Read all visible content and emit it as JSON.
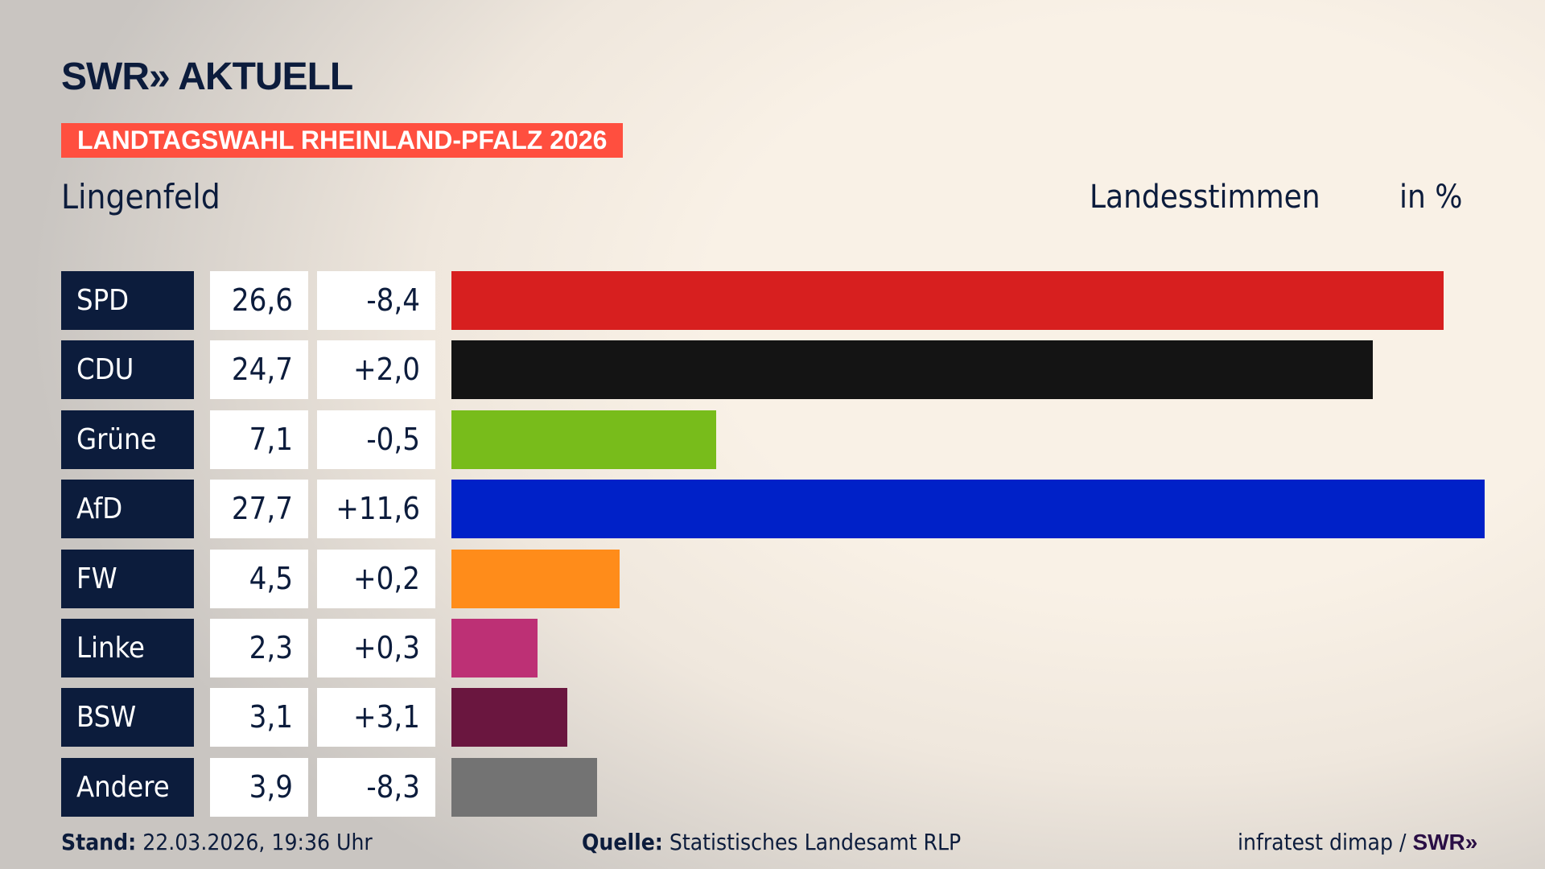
{
  "header": {
    "logo": "SWR» AKTUELL",
    "banner": "LANDTAGSWAHL RHEINLAND-PFALZ 2026",
    "place": "Lingenfeld",
    "vote_type": "Landesstimmen",
    "unit": "in %"
  },
  "chart_data": {
    "type": "bar",
    "orientation": "horizontal",
    "xlim": [
      0,
      27.7
    ],
    "grid": false,
    "categories": [
      "SPD",
      "CDU",
      "Grüne",
      "AfD",
      "FW",
      "Linke",
      "BSW",
      "Andere"
    ],
    "values": [
      26.6,
      24.7,
      7.1,
      27.7,
      4.5,
      2.3,
      3.1,
      3.9
    ],
    "value_labels": [
      "26,6",
      "24,7",
      "7,1",
      "27,7",
      "4,5",
      "2,3",
      "3,1",
      "3,9"
    ],
    "diff_labels": [
      "-8,4",
      "+2,0",
      "-0,5",
      "+11,6",
      "+0,2",
      "+0,3",
      "+3,1",
      "-8,3"
    ],
    "colors": [
      "#d71f1f",
      "#141414",
      "#78bc1b",
      "#0021c8",
      "#ff8c1a",
      "#bd3075",
      "#6a163f",
      "#737373"
    ]
  },
  "footer": {
    "stand_label": "Stand:",
    "stand_value": "22.03.2026, 19:36 Uhr",
    "source_label": "Quelle:",
    "source_value": "Statistisches Landesamt RLP",
    "credit": "infratest dimap /",
    "credit_logo": "SWR»"
  }
}
